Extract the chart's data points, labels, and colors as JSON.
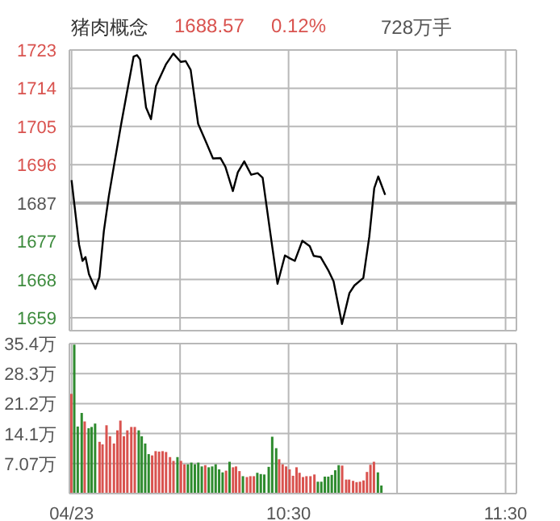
{
  "chart_data": [
    {
      "type": "line",
      "title": "猪肉概念",
      "annotations": [
        "1688.57",
        "0.12%",
        "728万手"
      ],
      "xlim": [
        9.49,
        11.55
      ],
      "xticks": [
        {
          "value": 9.5,
          "label": null
        },
        {
          "value": 10,
          "label": null
        },
        {
          "value": 10.5,
          "label": null
        },
        {
          "value": 11,
          "label": null
        },
        {
          "value": 11.5,
          "label": null
        }
      ],
      "ylim": [
        1656,
        1723.15
      ],
      "yticks": [
        {
          "value": 1659.1,
          "label": "1659"
        },
        {
          "value": 1668.25,
          "label": "1668"
        },
        {
          "value": 1677.4,
          "label": "1677"
        },
        {
          "value": 1686.55,
          "label": "1687"
        },
        {
          "value": 1695.7,
          "label": "1696"
        },
        {
          "value": 1704.85,
          "label": "1705"
        },
        {
          "value": 1714,
          "label": "1714"
        },
        {
          "value": 1723.15,
          "label": "1723"
        }
      ],
      "grid": true,
      "tick_labels": "y",
      "marker": "none",
      "ref_lines": [
        {
          "axis": "y",
          "value": 1686.55,
          "color": "#aaaaaa"
        }
      ],
      "series": [
        {
          "color": "#000000",
          "x": [
            9.5,
            9.5345,
            9.5505,
            9.5642,
            9.5802,
            9.61,
            9.6282,
            9.6488,
            9.6717,
            9.6945,
            9.7288,
            9.7517,
            9.786,
            9.802,
            9.8157,
            9.8432,
            9.866,
            9.8889,
            9.9347,
            9.9689,
            10.0032,
            10.026,
            10.0488,
            10.0832,
            10.1175,
            10.1517,
            10.186,
            10.209,
            10.2433,
            10.2662,
            10.2958,
            10.3278,
            10.3575,
            10.3805,
            10.4147,
            10.449,
            10.4833,
            10.5062,
            10.529,
            10.5633,
            10.5977,
            10.6158,
            10.648,
            10.6845,
            10.7073,
            10.7462,
            10.7805,
            10.8033,
            10.8445,
            10.872,
            10.8948,
            10.9132,
            10.9452
          ],
          "values": [
            1692.0,
            1676.6,
            1672.7,
            1673.6,
            1669.5,
            1666.0,
            1668.8,
            1679.8,
            1688.2,
            1695.2,
            1705.5,
            1712.0,
            1721.6,
            1721.9,
            1720.9,
            1709.4,
            1706.6,
            1714.5,
            1719.7,
            1722.3,
            1720.3,
            1720.5,
            1718.4,
            1705.5,
            1701.4,
            1697.2,
            1697.3,
            1695.2,
            1689.4,
            1693.9,
            1696.5,
            1693.3,
            1693.7,
            1692.6,
            1679.8,
            1667.2,
            1674.0,
            1673.3,
            1672.7,
            1677.5,
            1676.2,
            1673.9,
            1673.6,
            1670.3,
            1667.8,
            1657.6,
            1665.0,
            1666.8,
            1668.6,
            1678.5,
            1690.1,
            1692.9,
            1688.5
          ]
        }
      ]
    },
    {
      "type": "bar",
      "xlim": [
        9.49,
        11.55
      ],
      "xticks": [
        {
          "value": 9.5,
          "label": "04/23"
        },
        {
          "value": 10,
          "label": null
        },
        {
          "value": 10.5,
          "label": "10:30"
        },
        {
          "value": 11,
          "label": null
        },
        {
          "value": 11.5,
          "label": "11:30"
        }
      ],
      "ylim": [
        0,
        35.35
      ],
      "yticks": [
        {
          "value": 7.07,
          "label": "7.07万"
        },
        {
          "value": 14.14,
          "label": "14.1万"
        },
        {
          "value": 21.21,
          "label": "21.2万"
        },
        {
          "value": 28.28,
          "label": "28.3万"
        },
        {
          "value": 35.35,
          "label": "35.4万"
        }
      ],
      "grid": true,
      "x": [
        9.5,
        9.5137,
        9.5297,
        9.548,
        9.5617,
        9.58,
        9.5937,
        9.6097,
        9.6303,
        9.644,
        9.6623,
        9.6783,
        9.6966,
        9.7126,
        9.7263,
        9.7423,
        9.7583,
        9.7766,
        9.7926,
        9.8109,
        9.8246,
        9.8406,
        9.8567,
        9.8727,
        9.8887,
        9.9047,
        9.9207,
        9.9367,
        9.955,
        9.971,
        9.9893,
        10.0053,
        10.0213,
        10.0373,
        10.0533,
        10.0693,
        10.0853,
        10.1013,
        10.1173,
        10.1333,
        10.1493,
        10.1653,
        10.1813,
        10.1973,
        10.2133,
        10.2293,
        10.2453,
        10.259,
        10.275,
        10.291,
        10.3093,
        10.3253,
        10.3413,
        10.3573,
        10.3733,
        10.3893,
        10.4099,
        10.4259,
        10.4442,
        10.4579,
        10.4739,
        10.4899,
        10.5059,
        10.5219,
        10.5379,
        10.5517,
        10.5677,
        10.5837,
        10.602,
        10.6203,
        10.6363,
        10.6523,
        10.6683,
        10.6843,
        10.7003,
        10.7163,
        10.7323,
        10.7483,
        10.7666,
        10.7803,
        10.7986,
        10.8146,
        10.8306,
        10.8466,
        10.8626,
        10.8786,
        10.8946,
        10.9129,
        10.9289
      ],
      "values": [
        23.5,
        35.1,
        15.8,
        19.0,
        17.0,
        15.4,
        15.7,
        16.5,
        12.2,
        11.6,
        16.1,
        13.5,
        11.8,
        14.9,
        17.2,
        13.5,
        14.9,
        15.7,
        15.7,
        14.9,
        13.5,
        11.8,
        9.3,
        9.0,
        10.0,
        9.9,
        10.0,
        9.8,
        8.6,
        7.7,
        8.6,
        7.7,
        6.9,
        6.9,
        7.3,
        6.9,
        7.3,
        6.4,
        6.7,
        6.2,
        6.4,
        6.9,
        5.7,
        5.0,
        5.4,
        7.5,
        6.2,
        6.4,
        5.3,
        4.1,
        3.9,
        4.1,
        4.1,
        4.9,
        4.6,
        4.5,
        6.3,
        13.4,
        10.7,
        8.1,
        6.9,
        6.4,
        5.7,
        4.2,
        6.2,
        4.9,
        3.9,
        4.1,
        4.1,
        4.5,
        2.8,
        2.8,
        4.0,
        4.0,
        4.4,
        5.5,
        6.7,
        6.6,
        3.3,
        3.3,
        3.0,
        2.7,
        2.8,
        3.1,
        5.1,
        6.8,
        7.5,
        5.0,
        1.9
      ],
      "colors": [
        "#d9534f",
        "#2e8b2e",
        "#2e8b2e",
        "#2e8b2e",
        "#d9534f",
        "#2e8b2e",
        "#2e8b2e",
        "#2e8b2e",
        "#d9534f",
        "#d9534f",
        "#d9534f",
        "#d9534f",
        "#d9534f",
        "#d9534f",
        "#d9534f",
        "#d9534f",
        "#d9534f",
        "#d9534f",
        "#d9534f",
        "#2e8b2e",
        "#2e8b2e",
        "#2e8b2e",
        "#2e8b2e",
        "#d9534f",
        "#d9534f",
        "#d9534f",
        "#d9534f",
        "#d9534f",
        "#d9534f",
        "#d9534f",
        "#2e8b2e",
        "#d9534f",
        "#d9534f",
        "#2e8b2e",
        "#2e8b2e",
        "#2e8b2e",
        "#2e8b2e",
        "#2e8b2e",
        "#d9534f",
        "#2e8b2e",
        "#2e8b2e",
        "#2e8b2e",
        "#2e8b2e",
        "#2e8b2e",
        "#d9534f",
        "#2e8b2e",
        "#d9534f",
        "#d9534f",
        "#d9534f",
        "#2e8b2e",
        "#d9534f",
        "#d9534f",
        "#d9534f",
        "#2e8b2e",
        "#2e8b2e",
        "#2e8b2e",
        "#2e8b2e",
        "#2e8b2e",
        "#2e8b2e",
        "#d9534f",
        "#d9534f",
        "#d9534f",
        "#d9534f",
        "#d9534f",
        "#d9534f",
        "#d9534f",
        "#d9534f",
        "#d9534f",
        "#d9534f",
        "#d9534f",
        "#2e8b2e",
        "#2e8b2e",
        "#2e8b2e",
        "#2e8b2e",
        "#2e8b2e",
        "#2e8b2e",
        "#2e8b2e",
        "#d9534f",
        "#d9534f",
        "#d9534f",
        "#d9534f",
        "#d9534f",
        "#d9534f",
        "#d9534f",
        "#d9534f",
        "#d9534f",
        "#d9534f",
        "#2e8b2e",
        "#2e8b2e"
      ]
    }
  ]
}
